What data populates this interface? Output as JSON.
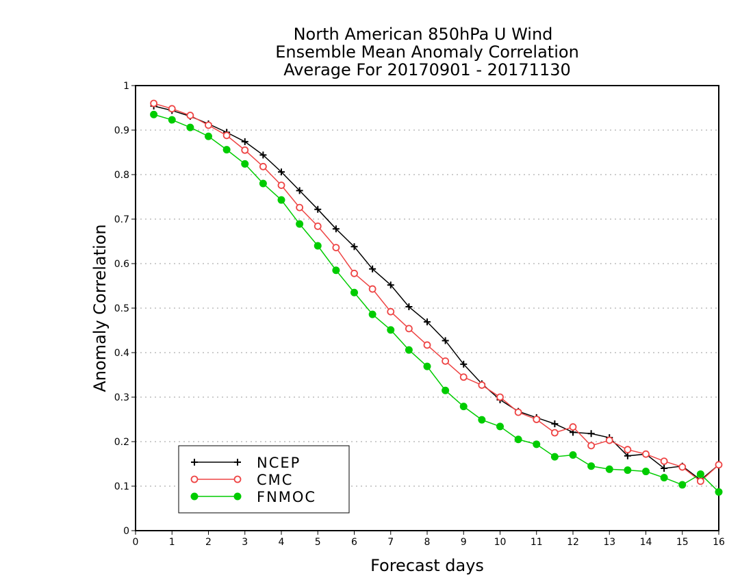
{
  "chart_data": {
    "type": "line",
    "title_lines": [
      "North American 850hPa U Wind",
      "Ensemble Mean Anomaly Correlation",
      "Average For 20170901 - 20171130"
    ],
    "xlabel": "Forecast days",
    "ylabel": "Anomaly Correlation",
    "xlim": [
      0,
      16
    ],
    "ylim": [
      0,
      1
    ],
    "x_ticks": [
      "0",
      "1",
      "2",
      "3",
      "4",
      "5",
      "6",
      "7",
      "8",
      "9",
      "10",
      "11",
      "12",
      "13",
      "14",
      "15",
      "16"
    ],
    "y_ticks": [
      "0",
      "0.1",
      "0.2",
      "0.3",
      "0.4",
      "0.5",
      "0.6",
      "0.7",
      "0.8",
      "0.9",
      "1"
    ],
    "grid": "horizontal dotted",
    "legend_position": "bottom-left",
    "x": [
      0.5,
      1,
      1.5,
      2,
      2.5,
      3,
      3.5,
      4,
      4.5,
      5,
      5.5,
      6,
      6.5,
      7,
      7.5,
      8,
      8.5,
      9,
      9.5,
      10,
      10.5,
      11,
      11.5,
      12,
      12.5,
      13,
      13.5,
      14,
      14.5,
      15,
      15.5,
      16
    ],
    "series": [
      {
        "name": "NCEP",
        "color": "#000000",
        "marker": "plus",
        "values": [
          0.954,
          0.944,
          0.931,
          0.914,
          0.895,
          0.874,
          0.844,
          0.806,
          0.764,
          0.722,
          0.678,
          0.638,
          0.588,
          0.552,
          0.503,
          0.469,
          0.427,
          0.374,
          0.33,
          0.294,
          0.268,
          0.254,
          0.24,
          0.221,
          0.218,
          0.209,
          0.168,
          0.172,
          0.14,
          0.145,
          0.114,
          0.148
        ]
      },
      {
        "name": "CMC",
        "color": "#ee4444",
        "marker": "open-circle",
        "values": [
          0.96,
          0.948,
          0.933,
          0.911,
          0.888,
          0.855,
          0.818,
          0.776,
          0.726,
          0.684,
          0.636,
          0.578,
          0.543,
          0.492,
          0.454,
          0.417,
          0.381,
          0.345,
          0.327,
          0.3,
          0.266,
          0.25,
          0.22,
          0.233,
          0.191,
          0.203,
          0.182,
          0.172,
          0.156,
          0.143,
          0.111,
          0.148
        ]
      },
      {
        "name": "FNMOC",
        "color": "#00cc00",
        "marker": "filled-circle",
        "values": [
          0.935,
          0.923,
          0.906,
          0.886,
          0.856,
          0.824,
          0.78,
          0.743,
          0.689,
          0.64,
          0.585,
          0.535,
          0.486,
          0.451,
          0.406,
          0.369,
          0.315,
          0.279,
          0.249,
          0.234,
          0.205,
          0.194,
          0.166,
          0.17,
          0.145,
          0.138,
          0.136,
          0.133,
          0.119,
          0.103,
          0.127,
          0.087
        ]
      }
    ]
  }
}
